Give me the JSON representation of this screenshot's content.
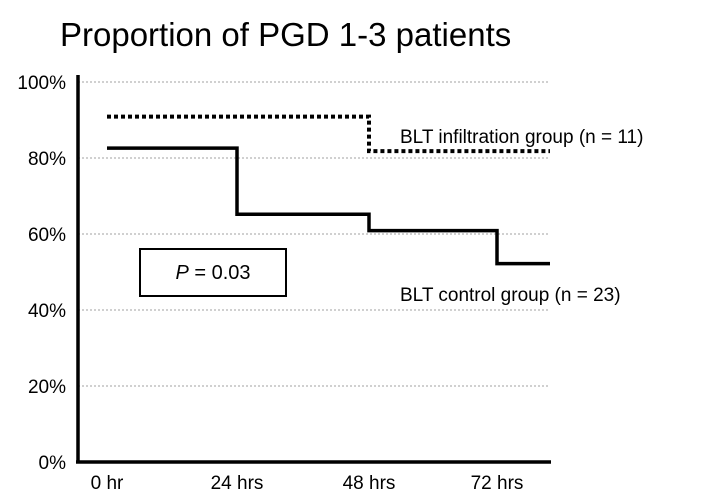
{
  "chart_data": {
    "type": "line",
    "title": "Proportion of PGD 1-3 patients",
    "x_categories": [
      "0 hr",
      "24 hrs",
      "48 hrs",
      "72 hrs"
    ],
    "y_ticks": [
      "0%",
      "20%",
      "40%",
      "60%",
      "80%",
      "100%"
    ],
    "ylim": [
      0,
      100
    ],
    "y_unit": "%",
    "grid": true,
    "step": true,
    "series": [
      {
        "name": "BLT infiltration group (n = 11)",
        "line_style": "dotted",
        "x": [
          0,
          24,
          48,
          72
        ],
        "values": [
          90.9,
          90.9,
          81.8,
          81.8
        ]
      },
      {
        "name": "BLT control group (n = 23)",
        "line_style": "solid",
        "x": [
          0,
          24,
          48,
          72
        ],
        "values": [
          82.6,
          65.2,
          60.9,
          52.2
        ]
      }
    ],
    "annotation": {
      "italic_part": "P",
      "rest": " = 0.03"
    }
  }
}
